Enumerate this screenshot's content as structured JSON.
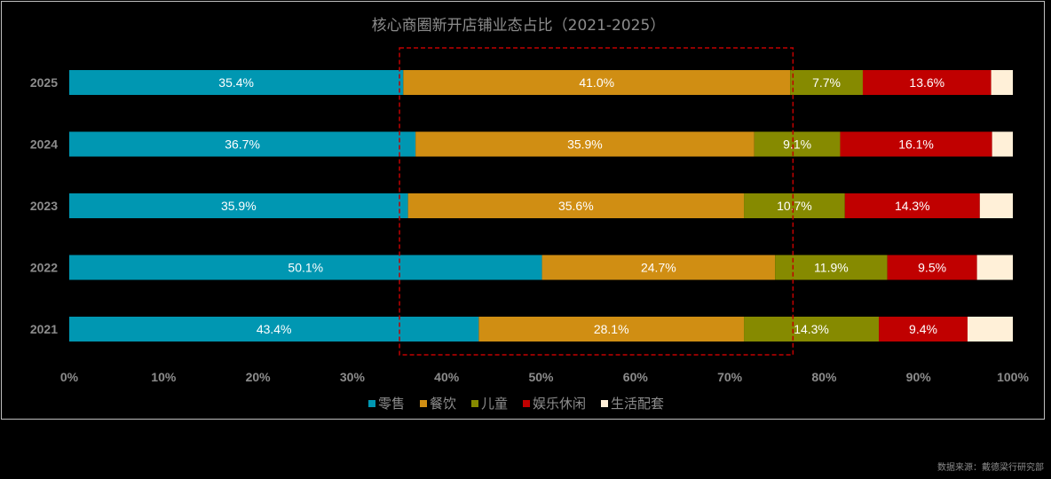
{
  "source_note": "数据来源：戴德梁行研究部",
  "chart_data": {
    "type": "bar",
    "orientation": "horizontal",
    "stacked": true,
    "title": "核心商圈新开店铺业态占比（2021-2025）",
    "categories": [
      "2025",
      "2024",
      "2023",
      "2022",
      "2021"
    ],
    "series": [
      {
        "name": "零售",
        "color": "#0097b2",
        "values": [
          35.4,
          36.7,
          35.9,
          50.1,
          43.4
        ]
      },
      {
        "name": "餐饮",
        "color": "#d08e13",
        "values": [
          41.0,
          35.9,
          35.6,
          24.7,
          28.1
        ]
      },
      {
        "name": "儿童",
        "color": "#868a00",
        "values": [
          7.7,
          9.1,
          10.7,
          11.9,
          14.3
        ]
      },
      {
        "name": "娱乐休闲",
        "color": "#c00000",
        "values": [
          13.6,
          16.1,
          14.3,
          9.5,
          9.4
        ]
      },
      {
        "name": "生活配套",
        "color": "#fff0d8",
        "values": [
          2.3,
          2.2,
          3.5,
          3.8,
          4.8
        ]
      }
    ],
    "labeled_series": [
      "零售",
      "餐饮",
      "儿童",
      "娱乐休闲"
    ],
    "value_format": "{v}%",
    "xlim": [
      0,
      100
    ],
    "x_ticks": [
      "0%",
      "10%",
      "20%",
      "30%",
      "40%",
      "50%",
      "60%",
      "70%",
      "80%",
      "90%",
      "100%"
    ],
    "grid": false,
    "legend_position": "bottom",
    "highlight_box": {
      "from": 35,
      "to": 76.7,
      "color": "#c00000",
      "style": "dashed"
    }
  }
}
